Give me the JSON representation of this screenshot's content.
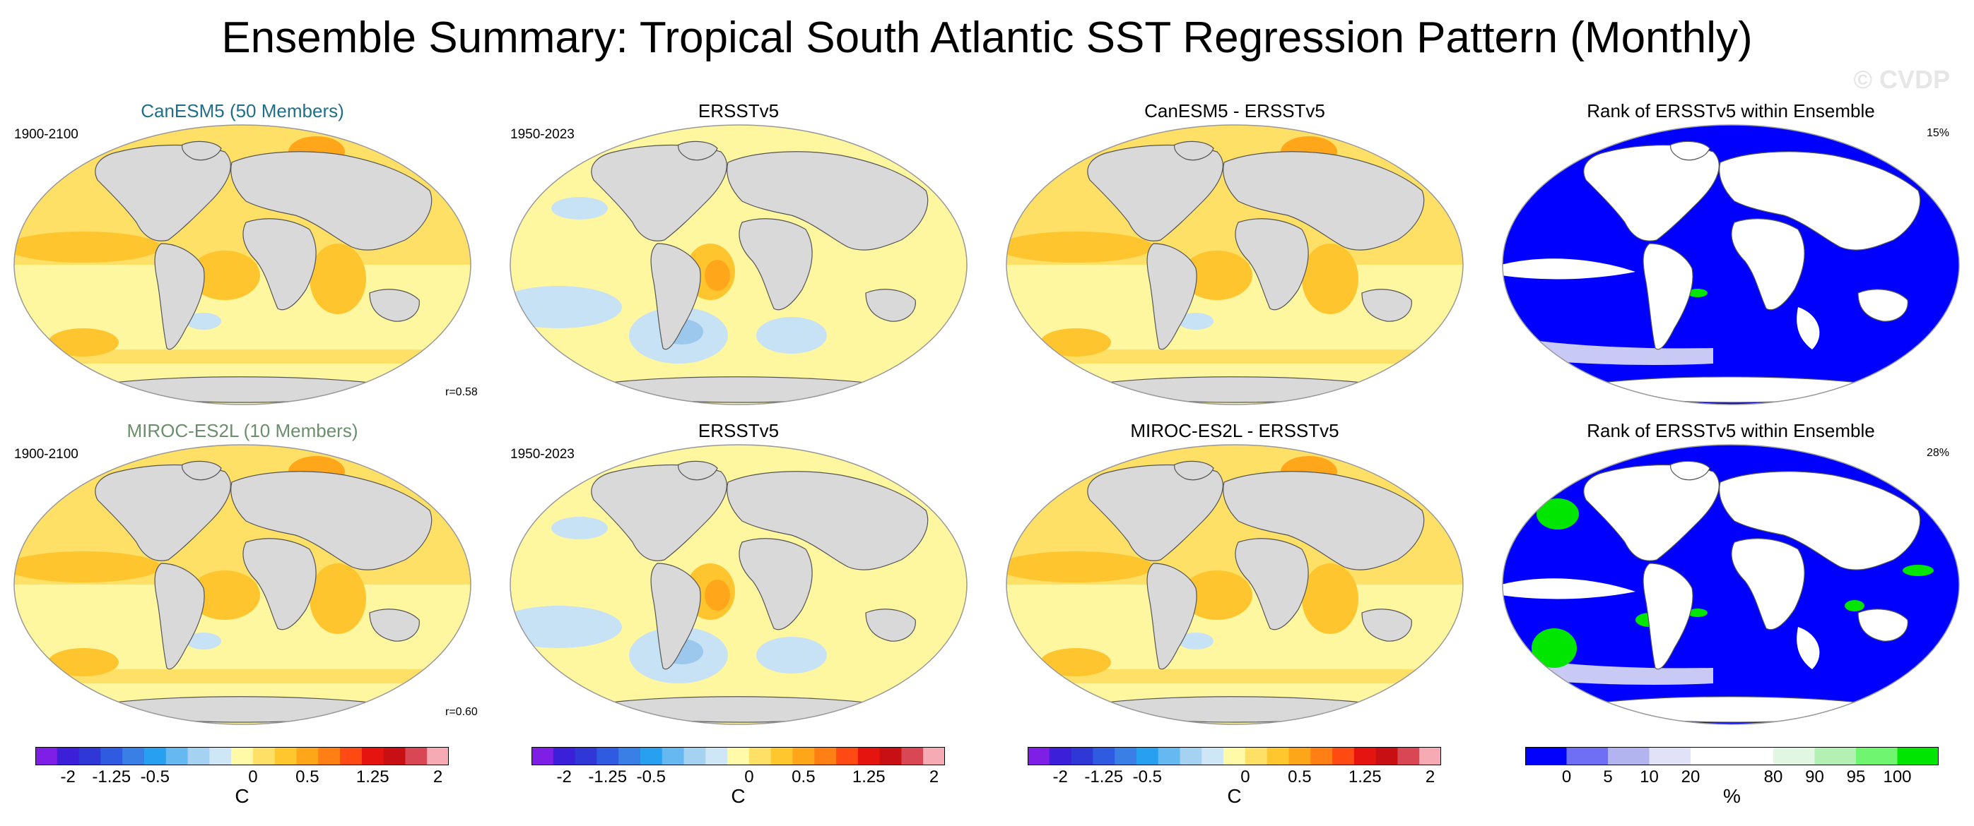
{
  "title": "Ensemble Summary: Tropical South Atlantic SST Regression Pattern (Monthly)",
  "watermark": "© CVDP",
  "rows": [
    {
      "model_title": "CanESM5 (50 Members)",
      "model_color": "#1f6f8b",
      "model_period": "1900-2100",
      "model_r": "r=0.58",
      "obs_title": "ERSSTv5",
      "obs_period": "1950-2023",
      "diff_title": "CanESM5 - ERSSTv5",
      "rank_title": "Rank of ERSSTv5 within Ensemble",
      "rank_pct": "15%"
    },
    {
      "model_title": "MIROC-ES2L (10 Members)",
      "model_color": "#6b8f6b",
      "model_period": "1900-2100",
      "model_r": "r=0.60",
      "obs_title": "ERSSTv5",
      "obs_period": "1950-2023",
      "diff_title": "MIROC-ES2L - ERSSTv5",
      "rank_title": "Rank of ERSSTv5 within Ensemble",
      "rank_pct": "28%"
    }
  ],
  "colorbar_sst": {
    "colors": [
      "#7f1fe6",
      "#3c1fd9",
      "#2f37d6",
      "#2e5be0",
      "#3a7fe6",
      "#28a0f0",
      "#66b8f0",
      "#a6d2f2",
      "#cfe6f6",
      "#fffaa8",
      "#ffe066",
      "#ffc72e",
      "#ffa51a",
      "#ff7f14",
      "#ff4a14",
      "#e6140f",
      "#c80f14",
      "#d94755",
      "#f5aab4"
    ],
    "ticks": [
      "-2",
      "-1.25",
      "-0.5",
      "0",
      "0.5",
      "1.25",
      "2"
    ],
    "unit": "C"
  },
  "colorbar_rank": {
    "colors": [
      "#0000ff",
      "#6f6ff5",
      "#b3b3f0",
      "#e1e1f7",
      "#ffffff",
      "#ffffff",
      "#e1f7e1",
      "#b3f0b3",
      "#6ff56f",
      "#00e600"
    ],
    "ticks": [
      "0",
      "5",
      "10",
      "20",
      "80",
      "90",
      "95",
      "100"
    ],
    "unit": "%"
  },
  "map_colors": {
    "land": "#d9d9d9",
    "coast": "#555555",
    "warm1": "#fff6a0",
    "warm2": "#ffe066",
    "warm3": "#ffc52e",
    "warm4": "#ffa61a",
    "cool1": "#c7e2f5",
    "cool2": "#9cc8ee",
    "rank_blue": "#0000ff",
    "rank_green": "#00e600",
    "rank_white": "#ffffff"
  }
}
